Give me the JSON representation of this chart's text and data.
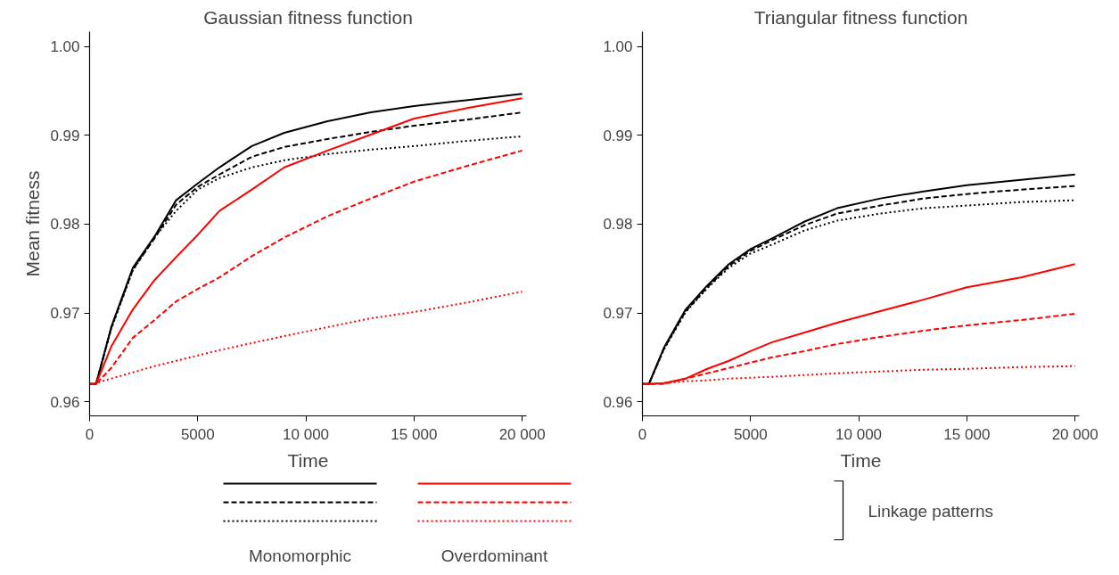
{
  "chart_data": [
    {
      "type": "line",
      "title": "Gaussian fitness function",
      "xlabel": "Time",
      "ylabel": "Mean fitness",
      "x": [
        0,
        300,
        1000,
        2000,
        3000,
        4000,
        5000,
        6000,
        7500,
        9000,
        11000,
        13000,
        15000,
        17500,
        20000
      ],
      "xlim": [
        0,
        20200
      ],
      "ylim": [
        0.9584,
        1.0017
      ],
      "xticks": [
        0,
        5000,
        {
          "value": 10000,
          "label": "10 000"
        },
        {
          "value": 15000,
          "label": "15 000"
        },
        {
          "value": 20000,
          "label": "20 000"
        }
      ],
      "yticks": [
        0.96,
        0.97,
        0.98,
        0.99,
        {
          "value": 1.0,
          "label": "1.00"
        }
      ],
      "annotations": [
        "Monomorphic",
        "Overdominant",
        "Linkage patterns"
      ],
      "series": [
        {
          "color": "#000000",
          "line_style": "solid",
          "values": [
            0.962,
            0.962,
            0.9684,
            0.9751,
            0.9786,
            0.9827,
            0.9846,
            0.9864,
            0.9888,
            0.9903,
            0.9916,
            0.9926,
            0.9933,
            0.994,
            0.9947
          ]
        },
        {
          "color": "#000000",
          "line_style": "dashed",
          "values": [
            0.962,
            0.962,
            0.9683,
            0.9749,
            0.9784,
            0.9822,
            0.9842,
            0.9856,
            0.9876,
            0.9887,
            0.9896,
            0.9904,
            0.9911,
            0.9918,
            0.9926
          ]
        },
        {
          "color": "#000000",
          "line_style": "dotted",
          "values": [
            0.962,
            0.962,
            0.9682,
            0.9748,
            0.9785,
            0.9815,
            0.9839,
            0.9852,
            0.9864,
            0.9872,
            0.9879,
            0.9884,
            0.9888,
            0.9894,
            0.9899
          ]
        },
        {
          "color": "#ff0000",
          "line_style": "solid",
          "values": [
            0.962,
            0.962,
            0.9662,
            0.9704,
            0.9737,
            0.9763,
            0.9788,
            0.9815,
            0.9839,
            0.9864,
            0.9883,
            0.9901,
            0.9919,
            0.9931,
            0.9942
          ]
        },
        {
          "color": "#ff0000",
          "line_style": "dashed",
          "values": [
            0.962,
            0.962,
            0.9638,
            0.9672,
            0.9692,
            0.9713,
            0.9727,
            0.974,
            0.9764,
            0.9785,
            0.9809,
            0.9829,
            0.9848,
            0.9866,
            0.9883
          ]
        },
        {
          "color": "#ff0000",
          "line_style": "dotted",
          "values": [
            0.962,
            0.9621,
            0.9626,
            0.9633,
            0.964,
            0.9646,
            0.9652,
            0.9658,
            0.9666,
            0.9674,
            0.9684,
            0.9694,
            0.9701,
            0.9712,
            0.9724
          ]
        }
      ]
    },
    {
      "type": "line",
      "title": "Triangular fitness function",
      "xlabel": "Time",
      "x": [
        0,
        300,
        1000,
        2000,
        3000,
        4000,
        5000,
        6000,
        7500,
        9000,
        11000,
        13000,
        15000,
        17500,
        20000
      ],
      "xlim": [
        0,
        20200
      ],
      "ylim": [
        0.9584,
        1.0017
      ],
      "xticks": [
        0,
        5000,
        {
          "value": 10000,
          "label": "10 000"
        },
        {
          "value": 15000,
          "label": "15 000"
        },
        {
          "value": 20000,
          "label": "20 000"
        }
      ],
      "yticks": [
        0.96,
        0.97,
        0.98,
        0.99,
        {
          "value": 1.0,
          "label": "1.00"
        }
      ],
      "series": [
        {
          "color": "#000000",
          "line_style": "solid",
          "values": [
            0.962,
            0.962,
            0.9661,
            0.9704,
            0.9731,
            0.9755,
            0.9772,
            0.9784,
            0.9803,
            0.9818,
            0.9829,
            0.9837,
            0.9844,
            0.985,
            0.9856
          ]
        },
        {
          "color": "#000000",
          "line_style": "dashed",
          "values": [
            0.962,
            0.962,
            0.966,
            0.9702,
            0.9729,
            0.9753,
            0.977,
            0.9782,
            0.9799,
            0.9812,
            0.9821,
            0.9829,
            0.9834,
            0.9839,
            0.9843
          ]
        },
        {
          "color": "#000000",
          "line_style": "dotted",
          "values": [
            0.962,
            0.962,
            0.9659,
            0.9701,
            0.9728,
            0.9751,
            0.9767,
            0.9777,
            0.9793,
            0.9804,
            0.9812,
            0.9818,
            0.9821,
            0.9825,
            0.9827
          ]
        },
        {
          "color": "#ff0000",
          "line_style": "solid",
          "values": [
            0.962,
            0.962,
            0.9621,
            0.9626,
            0.9637,
            0.9646,
            0.9657,
            0.9667,
            0.9678,
            0.9689,
            0.9702,
            0.9715,
            0.9729,
            0.974,
            0.9755
          ]
        },
        {
          "color": "#ff0000",
          "line_style": "dashed",
          "values": [
            0.962,
            0.962,
            0.962,
            0.9626,
            0.9632,
            0.9638,
            0.9644,
            0.965,
            0.9657,
            0.9665,
            0.9673,
            0.968,
            0.9686,
            0.9692,
            0.9699
          ]
        },
        {
          "color": "#ff0000",
          "line_style": "dotted",
          "values": [
            0.962,
            0.962,
            0.9621,
            0.9623,
            0.9624,
            0.9626,
            0.9627,
            0.9628,
            0.963,
            0.9632,
            0.9634,
            0.9636,
            0.9637,
            0.9639,
            0.964
          ]
        }
      ]
    }
  ]
}
